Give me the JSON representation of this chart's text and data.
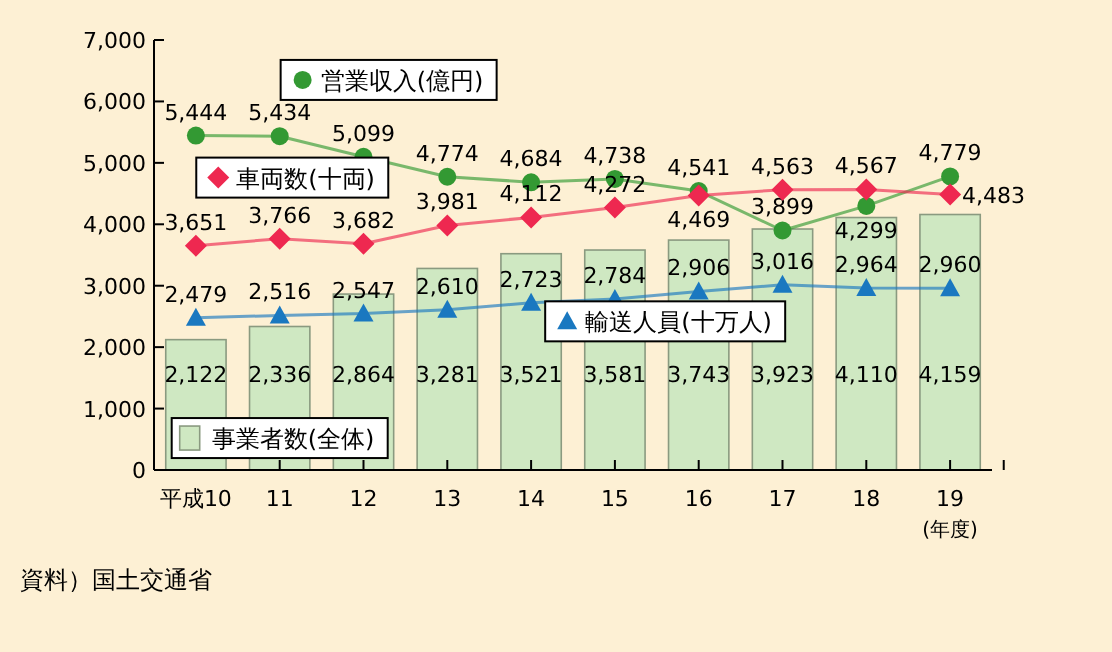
{
  "chart_data": {
    "type": "bar",
    "categories": [
      "平成10",
      "11",
      "12",
      "13",
      "14",
      "15",
      "16",
      "17",
      "18",
      "19"
    ],
    "xlabel": "(年度)",
    "ylim": [
      0,
      7000
    ],
    "yticks": [
      {
        "value": 0,
        "label": "0"
      },
      {
        "value": 1000,
        "label": "1,000"
      },
      {
        "value": 2000,
        "label": "2,000"
      },
      {
        "value": 3000,
        "label": "3,000"
      },
      {
        "value": 4000,
        "label": "4,000"
      },
      {
        "value": 5000,
        "label": "5,000"
      },
      {
        "value": 6000,
        "label": "6,000"
      },
      {
        "value": 7000,
        "label": "7,000"
      }
    ],
    "legend": "bottom left",
    "annotations": [
      "資料）国土交通省"
    ],
    "series": [
      {
        "name": "事業者数(全体)",
        "color": "#cfe8c2",
        "values": [
          2122,
          2336,
          2864,
          3281,
          3521,
          3581,
          3743,
          3923,
          4110,
          4159
        ],
        "value_labels": [
          "2,122",
          "2,336",
          "2,864",
          "3,281",
          "3,521",
          "3,581",
          "3,743",
          "3,923",
          "4,110",
          "4,159"
        ]
      },
      {
        "name": "営業収入(億円)",
        "type": "line",
        "marker": "circle",
        "color": "#339933",
        "values": [
          5444,
          5434,
          5099,
          4774,
          4684,
          4738,
          4541,
          3899,
          4299,
          4779
        ],
        "value_labels": [
          "5,444",
          "5,434",
          "5,099",
          "4,774",
          "4,684",
          "4,738",
          "4,541",
          "3,899",
          "4,299",
          "4,779"
        ]
      },
      {
        "name": "車両数(十両)",
        "type": "line",
        "marker": "diamond",
        "color": "#ee2850",
        "values": [
          3651,
          3766,
          3682,
          3981,
          4112,
          4272,
          4469,
          4563,
          4567,
          4483
        ],
        "value_labels": [
          "3,651",
          "3,766",
          "3,682",
          "3,981",
          "4,112",
          "4,272",
          "4,469",
          "4,563",
          "4,567",
          "4,483"
        ]
      },
      {
        "name": "輸送人員(十万人)",
        "type": "line",
        "marker": "triangle",
        "color": "#1a78c0",
        "values": [
          2479,
          2516,
          2547,
          2610,
          2723,
          2784,
          2906,
          3016,
          2964,
          2960
        ],
        "value_labels": [
          "2,479",
          "2,516",
          "2,547",
          "2,610",
          "2,723",
          "2,784",
          "2,906",
          "3,016",
          "2,964",
          "2,960"
        ]
      }
    ]
  }
}
